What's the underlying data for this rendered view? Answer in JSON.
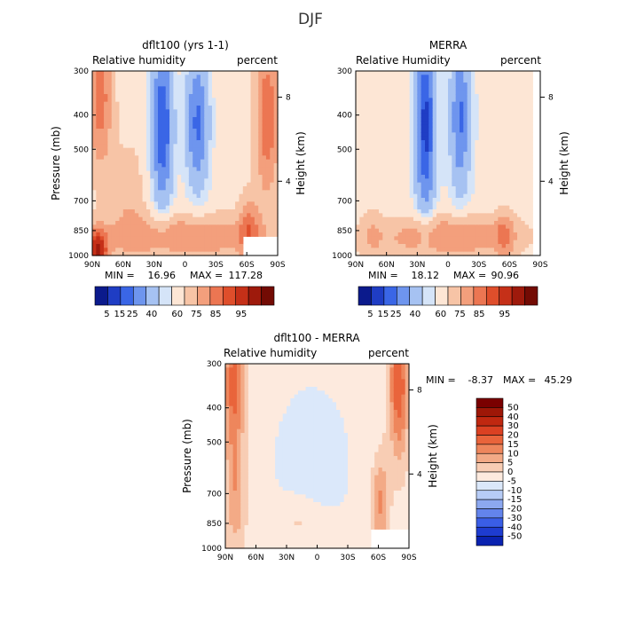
{
  "figure_title": "DJF",
  "colors": {
    "panel_scale_abs": [
      "#0b1a8c",
      "#1f3dc4",
      "#3a66e6",
      "#6e95ee",
      "#a6c2f2",
      "#d5e4f8",
      "#fde6d5",
      "#f7c4a6",
      "#f39f7c",
      "#ec7652",
      "#df4e2b",
      "#c53018",
      "#9e1a0c",
      "#730b04"
    ],
    "panel_scale_diff": [
      "#00008b",
      "#0a22b0",
      "#1e3cd0",
      "#3a5ee6",
      "#6384ec",
      "#8ca8f0",
      "#b7ccf6",
      "#dbe8fa",
      "#fdeade",
      "#f8cdb4",
      "#f3aa86",
      "#ee865c",
      "#e9643b",
      "#db4122",
      "#c02810",
      "#9e1707",
      "#7a0000"
    ]
  },
  "chart_data": [
    {
      "type": "heatmap",
      "title": "dflt100 (yrs 1-1)",
      "subtitle_left": "Relative humidity",
      "subtitle_right": "percent",
      "ylabel": "Pressure (mb)",
      "ylabel_right": "Height (km)",
      "x_ticks": [
        "90N",
        "60N",
        "30N",
        "0",
        "30S",
        "60S",
        "90S"
      ],
      "y_ticks": [
        300,
        400,
        500,
        700,
        850,
        1000
      ],
      "y_right_ticks": [
        8,
        4
      ],
      "stats": {
        "min_label": "MIN =",
        "min": "16.96",
        "max_label": "MAX =",
        "max": "117.28"
      },
      "colorbar_labels": [
        "5",
        "15",
        "25",
        "40",
        "60",
        "75",
        "85",
        "95"
      ],
      "ylim": [
        1000,
        300
      ],
      "xlim": [
        90,
        -90
      ]
    },
    {
      "type": "heatmap",
      "title": "MERRA",
      "subtitle_left": "Relative Humidity",
      "subtitle_right": "percent",
      "ylabel_right": "Height (km)",
      "x_ticks": [
        "90N",
        "60N",
        "30N",
        "0",
        "30S",
        "60S",
        "90S"
      ],
      "y_ticks": [
        300,
        400,
        500,
        700,
        850,
        1000
      ],
      "y_right_ticks": [
        8,
        4
      ],
      "stats": {
        "min_label": "MIN =",
        "min": "18.12",
        "max_label": "MAX =",
        "max": "90.96"
      },
      "colorbar_labels": [
        "5",
        "15",
        "25",
        "40",
        "60",
        "75",
        "85",
        "95"
      ],
      "ylim": [
        1000,
        300
      ],
      "xlim": [
        90,
        -90
      ]
    },
    {
      "type": "heatmap",
      "title": "dflt100 - MERRA",
      "subtitle_left": "Relative humidity",
      "subtitle_right": "percent",
      "ylabel": "Pressure (mb)",
      "ylabel_right": "Height (km)",
      "x_ticks": [
        "90N",
        "60N",
        "30N",
        "0",
        "30S",
        "60S",
        "90S"
      ],
      "y_ticks": [
        300,
        400,
        500,
        700,
        850,
        1000
      ],
      "y_right_ticks": [
        8,
        4
      ],
      "stats": {
        "min_label": "MIN =",
        "min": "-8.37",
        "max_label": "MAX =",
        "max": "45.29"
      },
      "colorbar_labels": [
        "50",
        "40",
        "30",
        "20",
        "15",
        "10",
        "5",
        "0",
        "-5",
        "-10",
        "-15",
        "-20",
        "-30",
        "-40",
        "-50"
      ],
      "ylim": [
        1000,
        300
      ],
      "xlim": [
        90,
        -90
      ]
    }
  ]
}
